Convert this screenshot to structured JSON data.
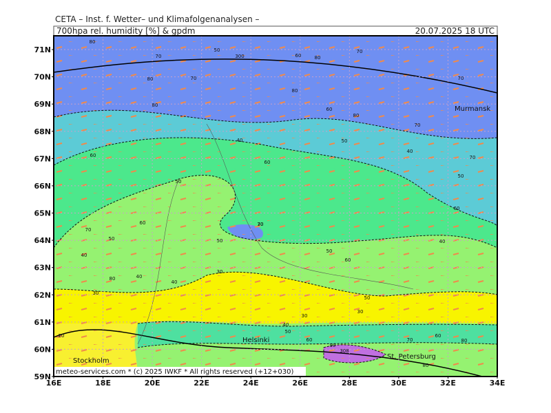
{
  "header": {
    "institute": "CETA – Inst. f. Wetter– und Klimafolgenanalysen –",
    "parameter": "700hpa rel. humidity [%] & gpdm",
    "valid": "20.07.2025 18 UTC"
  },
  "axes": {
    "latitudes": [
      "71N",
      "70N",
      "69N",
      "68N",
      "67N",
      "66N",
      "65N",
      "64N",
      "63N",
      "62N",
      "61N",
      "60N",
      "59N"
    ],
    "longitudes": [
      "16E",
      "18E",
      "20E",
      "22E",
      "24E",
      "26E",
      "28E",
      "30E",
      "32E",
      "34E"
    ]
  },
  "cities": [
    "Murmansk",
    "Helsinki",
    "St. Petersburg",
    "Stockholm"
  ],
  "contour_labels": [
    "80",
    "70",
    "50",
    "300",
    "60",
    "80",
    "70",
    "80",
    "70",
    "80",
    "70",
    "80",
    "60",
    "80",
    "70",
    "50",
    "40",
    "50",
    "60",
    "40",
    "50",
    "60",
    "70",
    "70",
    "60",
    "40",
    "60",
    "50",
    "30",
    "40",
    "40",
    "30",
    "50",
    "30",
    "80",
    "90",
    "308",
    "80",
    "40",
    "50",
    "50",
    "70",
    "60",
    "30",
    "30",
    "20",
    "80",
    "60",
    "40",
    "70",
    "50",
    "60"
  ],
  "footer": "meteo-services.com * (c) 2025 IWKF * All rights reserved (+12+030)"
}
